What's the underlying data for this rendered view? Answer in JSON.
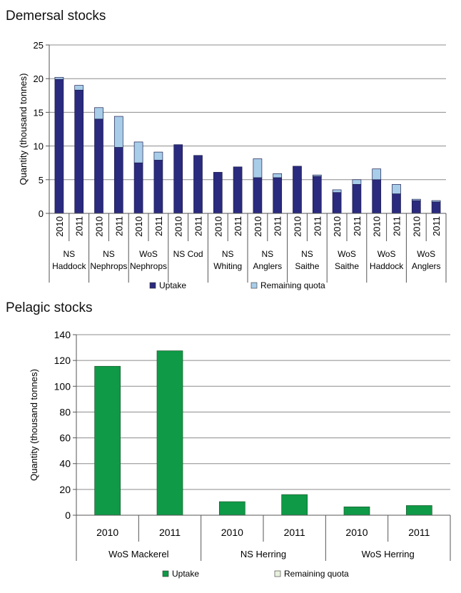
{
  "chart_data": [
    {
      "type": "bar",
      "stacked": true,
      "title": "Demersal stocks",
      "ylabel": "Quantity (thousand tonnes)",
      "ylim": [
        0,
        25
      ],
      "yticks": [
        0,
        5,
        10,
        15,
        20,
        25
      ],
      "grid": true,
      "legend_position": "bottom",
      "groups": [
        {
          "name": [
            "NS",
            "Haddock"
          ],
          "years": [
            "2010",
            "2011"
          ]
        },
        {
          "name": [
            "NS",
            "Nephrops"
          ],
          "years": [
            "2010",
            "2011"
          ]
        },
        {
          "name": [
            "WoS",
            "Nephrops"
          ],
          "years": [
            "2010",
            "2011"
          ]
        },
        {
          "name": [
            "NS Cod"
          ],
          "years": [
            "2010",
            "2011"
          ]
        },
        {
          "name": [
            "NS",
            "Whiting"
          ],
          "years": [
            "2010",
            "2011"
          ]
        },
        {
          "name": [
            "NS",
            "Anglers"
          ],
          "years": [
            "2010",
            "2011"
          ]
        },
        {
          "name": [
            "NS",
            "Saithe"
          ],
          "years": [
            "2010",
            "2011"
          ]
        },
        {
          "name": [
            "WoS",
            "Saithe"
          ],
          "years": [
            "2010",
            "2011"
          ]
        },
        {
          "name": [
            "WoS",
            "Haddock"
          ],
          "years": [
            "2010",
            "2011"
          ]
        },
        {
          "name": [
            "WoS",
            "Anglers"
          ],
          "years": [
            "2010",
            "2011"
          ]
        }
      ],
      "series": [
        {
          "name": "Uptake",
          "color": "#2a2a7e",
          "values": [
            19.9,
            18.3,
            14.0,
            9.8,
            7.5,
            7.9,
            10.2,
            8.6,
            6.1,
            6.9,
            5.3,
            5.3,
            7.0,
            5.5,
            3.1,
            4.3,
            5.0,
            2.9,
            1.9,
            1.7
          ]
        },
        {
          "name": "Remaining quota",
          "color": "#a7cde9",
          "values": [
            0.3,
            0.7,
            1.7,
            4.6,
            3.1,
            1.2,
            0.0,
            0.0,
            0.0,
            0.0,
            2.8,
            0.6,
            0.0,
            0.2,
            0.4,
            0.7,
            1.6,
            1.4,
            0.2,
            0.2
          ]
        }
      ]
    },
    {
      "type": "bar",
      "stacked": true,
      "title": "Pelagic stocks",
      "ylabel": "Quantity (thousand tonnes)",
      "ylim": [
        0,
        140
      ],
      "yticks": [
        0,
        20,
        40,
        60,
        80,
        100,
        120,
        140
      ],
      "grid": true,
      "legend_position": "bottom",
      "groups": [
        {
          "name": [
            "WoS Mackerel"
          ],
          "years": [
            "2010",
            "2011"
          ]
        },
        {
          "name": [
            "NS Herring"
          ],
          "years": [
            "2010",
            "2011"
          ]
        },
        {
          "name": [
            "WoS Herring"
          ],
          "years": [
            "2010",
            "2011"
          ]
        }
      ],
      "series": [
        {
          "name": "Uptake",
          "color": "#0e9a47",
          "values": [
            115.5,
            127.5,
            10.5,
            16.0,
            6.5,
            7.5
          ]
        },
        {
          "name": "Remaining quota",
          "color": "#e8f1dc",
          "values": [
            0,
            0,
            0,
            0,
            0,
            0
          ]
        }
      ]
    }
  ]
}
